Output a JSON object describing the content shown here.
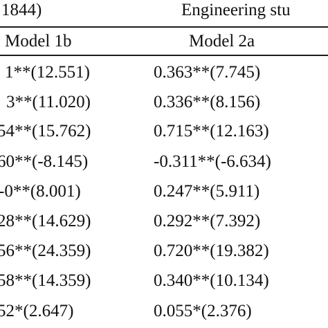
{
  "table": {
    "header_top": {
      "left_group": "1844)",
      "right_group": "Engineering stu"
    },
    "columns": {
      "model_1b": "Model 1b",
      "model_2a": "Model 2a"
    },
    "rows": [
      {
        "model_1b": "1**(12.551)",
        "model_2a": "0.363**(7.745)"
      },
      {
        "model_1b": "3**(11.020)",
        "model_2a": "0.336**(8.156)"
      },
      {
        "model_1b": "54**(15.762)",
        "model_2a": "0.715**(12.163)"
      },
      {
        "model_1b": "60**(-8.145)",
        "model_2a": "-0.311**(-6.634)"
      },
      {
        "model_1b": "-0**(8.001)",
        "model_2a": "0.247**(5.911)"
      },
      {
        "model_1b": "28**(14.629)",
        "model_2a": "0.292**(7.392)"
      },
      {
        "model_1b": "56**(24.359)",
        "model_2a": "0.720**(19.382)"
      },
      {
        "model_1b": "58**(14.359)",
        "model_2a": "0.340**(10.134)"
      },
      {
        "model_1b": "52*(2.647)",
        "model_2a": "0.055*(2.376)"
      }
    ]
  }
}
